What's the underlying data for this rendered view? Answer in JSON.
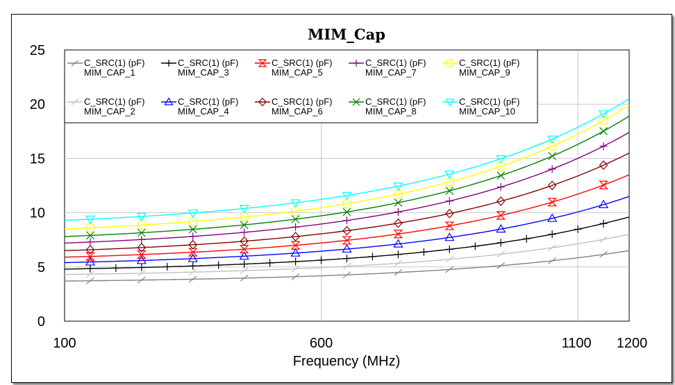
{
  "chart_data": {
    "type": "line",
    "title": "MIM_Cap",
    "xlabel": "Frequency (MHz)",
    "ylabel": "",
    "xlim": [
      100,
      1200
    ],
    "ylim": [
      0,
      25
    ],
    "x_ticks": [
      "100",
      "600",
      "1100",
      "1200"
    ],
    "x_tick_values": [
      100,
      600,
      1100,
      1200
    ],
    "y_ticks": [
      "0",
      "5",
      "10",
      "15",
      "20",
      "25"
    ],
    "y_tick_values": [
      0,
      5,
      10,
      15,
      20,
      25
    ],
    "grid": true,
    "legend_placement": "top-left",
    "series": [
      {
        "line1": "C_SRC(1) (pF)",
        "line2": "MIM_CAP_1",
        "color": "#808080",
        "marker": "slash",
        "base": 3.7,
        "top": 6.5,
        "marker_step": 2
      },
      {
        "line1": "C_SRC(1) (pF)",
        "line2": "MIM_CAP_2",
        "color": "#c0c0c0",
        "marker": "slash",
        "base": 4.3,
        "top": 8.0,
        "marker_step": 2
      },
      {
        "line1": "C_SRC(1) (pF)",
        "line2": "MIM_CAP_3",
        "color": "#000000",
        "marker": "plus",
        "base": 4.8,
        "top": 9.6,
        "marker_step": 1
      },
      {
        "line1": "C_SRC(1) (pF)",
        "line2": "MIM_CAP_4",
        "color": "#0000ff",
        "marker": "triangle",
        "base": 5.4,
        "top": 11.5,
        "marker_step": 2
      },
      {
        "line1": "C_SRC(1) (pF)",
        "line2": "MIM_CAP_5",
        "color": "#ff0000",
        "marker": "hourglass",
        "base": 5.9,
        "top": 13.5,
        "marker_step": 2
      },
      {
        "line1": "C_SRC(1) (pF)",
        "line2": "MIM_CAP_6",
        "color": "#800000",
        "marker": "diamond",
        "base": 6.5,
        "top": 15.5,
        "marker_step": 2
      },
      {
        "line1": "C_SRC(1) (pF)",
        "line2": "MIM_CAP_7",
        "color": "#800080",
        "marker": "plus",
        "base": 7.2,
        "top": 17.4,
        "marker_step": 2
      },
      {
        "line1": "C_SRC(1) (pF)",
        "line2": "MIM_CAP_8",
        "color": "#008000",
        "marker": "x",
        "base": 7.8,
        "top": 18.9,
        "marker_step": 2
      },
      {
        "line1": "C_SRC(1) (pF)",
        "line2": "MIM_CAP_9",
        "color": "#ffff00",
        "marker": "circle",
        "base": 8.5,
        "top": 19.9,
        "marker_step": 2
      },
      {
        "line1": "C_SRC(1) (pF)",
        "line2": "MIM_CAP_10",
        "color": "#00ffff",
        "marker": "triangle-down",
        "base": 9.3,
        "top": 20.5,
        "marker_step": 2
      }
    ],
    "x_samples": [
      100,
      150,
      200,
      250,
      300,
      350,
      400,
      450,
      500,
      550,
      600,
      650,
      700,
      750,
      800,
      850,
      900,
      950,
      1000,
      1050,
      1100,
      1150,
      1200
    ]
  }
}
